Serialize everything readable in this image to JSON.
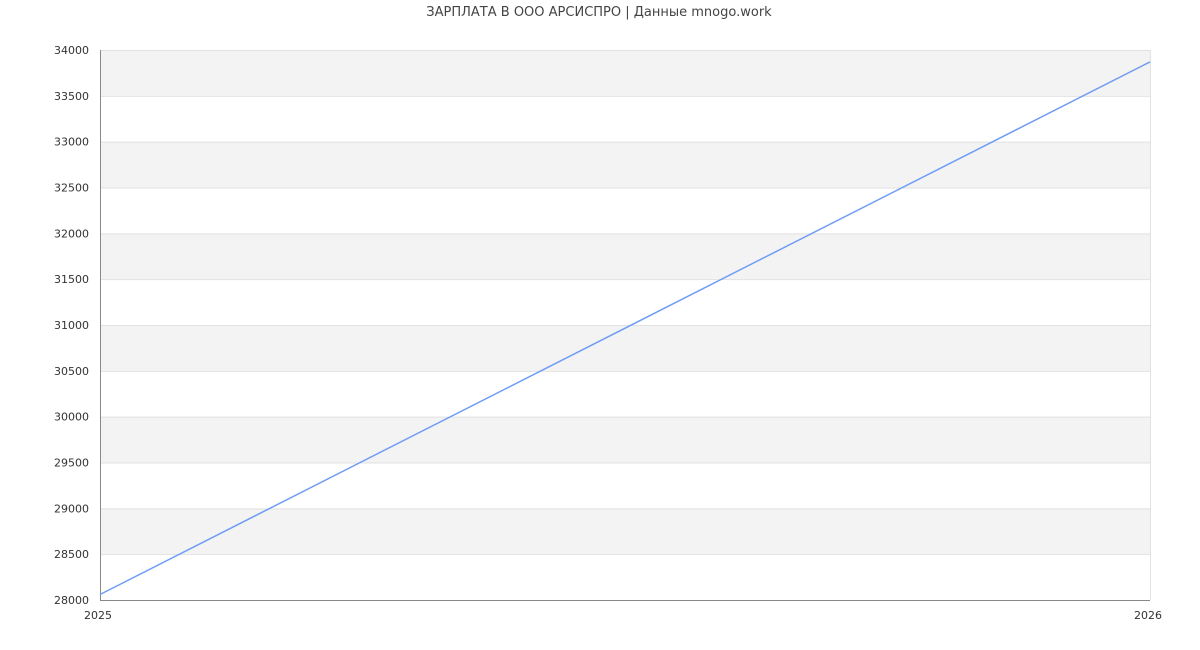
{
  "chart_data": {
    "type": "line",
    "title": "ЗАРПЛАТА В ООО АРСИСПРО | Данные mnogo.work",
    "x": [
      2025,
      2026
    ],
    "x_tick_labels": [
      "2025",
      "2026"
    ],
    "series": [
      {
        "values": [
          28060,
          33870
        ],
        "color": "#6f9cf4"
      }
    ],
    "ylim": [
      28000,
      34000
    ],
    "y_ticks": [
      28000,
      28500,
      29000,
      29500,
      30000,
      30500,
      31000,
      31500,
      32000,
      32500,
      33000,
      33500,
      34000
    ],
    "grid": true,
    "band_color": "#f3f3f3",
    "legend": "none"
  }
}
